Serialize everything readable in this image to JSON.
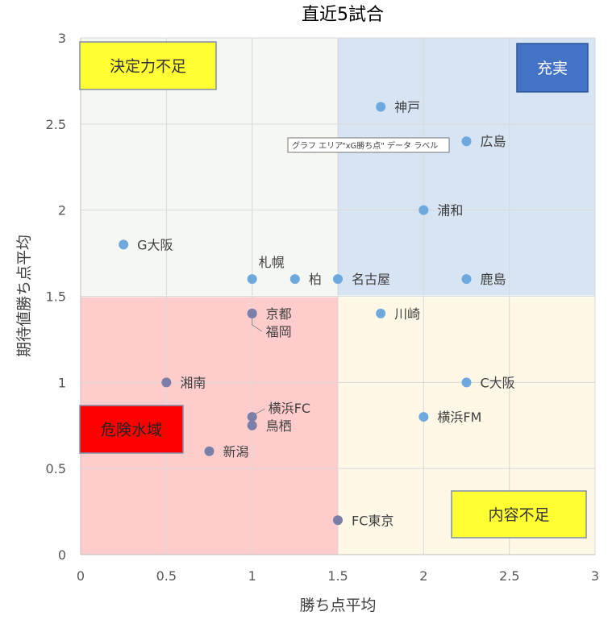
{
  "chart_data": {
    "type": "scatter",
    "title": "直近5試合",
    "xlabel": "勝ち点平均",
    "ylabel": "期待値勝ち点平均",
    "xlim": [
      0,
      3
    ],
    "ylim": [
      0,
      3
    ],
    "x_ticks": [
      "0",
      "0.5",
      "1",
      "1.5",
      "2",
      "2.5",
      "3"
    ],
    "y_ticks": [
      "0",
      "0.5",
      "1",
      "1.5",
      "2",
      "2.5",
      "3"
    ],
    "grid": true,
    "quadrant_split": {
      "x": 1.5,
      "y": 1.5
    },
    "quadrants": [
      {
        "label": "決定力不足",
        "region": "top-left",
        "fill": "#F5F8F2",
        "box_fill": "#FFFF33",
        "text_color": "#333333"
      },
      {
        "label": "充実",
        "region": "top-right",
        "fill": "#D6E4F4",
        "box_fill": "#4472C4",
        "text_color": "#FFFFFF"
      },
      {
        "label": "危険水域",
        "region": "bottom-left",
        "fill": "#FFCCCC",
        "box_fill": "#FF0000",
        "text_color": "#222222"
      },
      {
        "label": "内容不足",
        "region": "bottom-right",
        "fill": "#FFF8E6",
        "box_fill": "#FFFF33",
        "text_color": "#333333"
      }
    ],
    "points": [
      {
        "label": "神戸",
        "x": 1.75,
        "y": 2.6
      },
      {
        "label": "広島",
        "x": 2.25,
        "y": 2.4
      },
      {
        "label": "浦和",
        "x": 2.0,
        "y": 2.0
      },
      {
        "label": "G大阪",
        "x": 0.25,
        "y": 1.8
      },
      {
        "label": "札幌",
        "x": 1.0,
        "y": 1.6
      },
      {
        "label": "柏",
        "x": 1.25,
        "y": 1.6
      },
      {
        "label": "名古屋",
        "x": 1.5,
        "y": 1.6
      },
      {
        "label": "鹿島",
        "x": 2.25,
        "y": 1.6
      },
      {
        "label": "京都",
        "x": 1.0,
        "y": 1.4
      },
      {
        "label": "福岡",
        "x": 1.0,
        "y": 1.4
      },
      {
        "label": "川崎",
        "x": 1.75,
        "y": 1.4
      },
      {
        "label": "湘南",
        "x": 0.5,
        "y": 1.0
      },
      {
        "label": "C大阪",
        "x": 2.25,
        "y": 1.0
      },
      {
        "label": "横浜FC",
        "x": 1.0,
        "y": 0.8
      },
      {
        "label": "鳥栖",
        "x": 1.0,
        "y": 0.75
      },
      {
        "label": "横浜FM",
        "x": 2.0,
        "y": 0.8
      },
      {
        "label": "新潟",
        "x": 0.75,
        "y": 0.6
      },
      {
        "label": "FC東京",
        "x": 1.5,
        "y": 0.2
      }
    ],
    "colors": {
      "point_light": "#6FA8DC",
      "point_dark": "#7A7FA8",
      "grid": "#D9D9D9",
      "axis": "#BFBFBF"
    }
  },
  "tooltip": {
    "text": "グラフ エリア",
    "text_2": "\"xG勝ち点\" データ ラベル"
  }
}
